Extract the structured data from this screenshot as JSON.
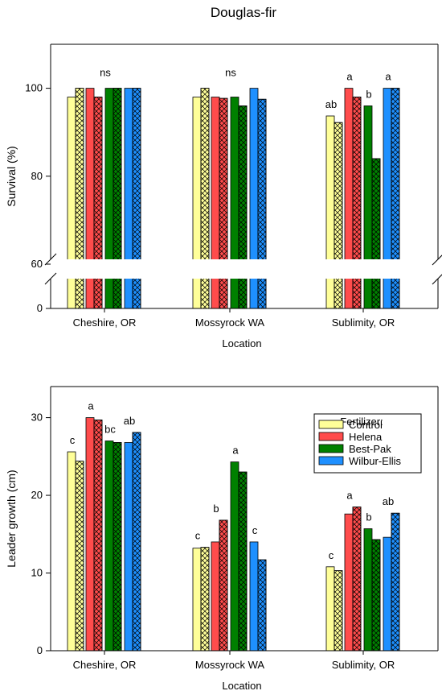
{
  "title": "Douglas-fir",
  "colors": {
    "Control": "#ffff99",
    "Helena": "#ff4c4c",
    "Best-Pak": "#008000",
    "Wilbur-Ellis": "#1e90ff"
  },
  "chart_data": [
    {
      "type": "bar",
      "title": "Douglas-fir",
      "xlabel": "Location",
      "ylabel": "Survival (%)",
      "categories": [
        "Cheshire, OR",
        "Mossyrock WA",
        "Sublimity, OR"
      ],
      "axis_break": [
        0,
        60
      ],
      "ylim": [
        60,
        110
      ],
      "yticks": [
        0,
        60,
        80,
        100
      ],
      "bars_per_treatment": [
        "solid",
        "hatched"
      ],
      "series": [
        {
          "name": "Control",
          "values": [
            [
              98,
              100
            ],
            [
              98,
              100
            ],
            [
              93.7,
              92.2
            ]
          ]
        },
        {
          "name": "Helena",
          "values": [
            [
              100,
              98
            ],
            [
              98,
              97.7
            ],
            [
              100,
              98
            ]
          ]
        },
        {
          "name": "Best-Pak",
          "values": [
            [
              100,
              100
            ],
            [
              98,
              96
            ],
            [
              96,
              84
            ]
          ]
        },
        {
          "name": "Wilbur-Ellis",
          "values": [
            [
              100,
              100
            ],
            [
              100,
              97.5
            ],
            [
              100,
              100
            ]
          ]
        }
      ],
      "annotations": [
        {
          "category": 0,
          "text": "ns"
        },
        {
          "category": 1,
          "text": "ns"
        },
        {
          "category": 2,
          "series": 0,
          "text": "ab"
        },
        {
          "category": 2,
          "series": 1,
          "text": "a"
        },
        {
          "category": 2,
          "series": 2,
          "text": "b"
        },
        {
          "category": 2,
          "series": 3,
          "text": "a"
        }
      ]
    },
    {
      "type": "bar",
      "xlabel": "Location",
      "ylabel": "Leader growth (cm)",
      "categories": [
        "Cheshire, OR",
        "Mossyrock WA",
        "Sublimity, OR"
      ],
      "ylim": [
        0,
        34
      ],
      "yticks": [
        0,
        10,
        20,
        30
      ],
      "bars_per_treatment": [
        "solid",
        "hatched"
      ],
      "legend": {
        "title": "Fertilizer:",
        "placement": "top-right"
      },
      "series": [
        {
          "name": "Control",
          "values": [
            [
              25.6,
              24.4
            ],
            [
              13.2,
              13.3
            ],
            [
              10.8,
              10.3
            ]
          ]
        },
        {
          "name": "Helena",
          "values": [
            [
              30,
              29.7
            ],
            [
              14,
              16.8
            ],
            [
              17.6,
              18.5
            ]
          ]
        },
        {
          "name": "Best-Pak",
          "values": [
            [
              27,
              26.8
            ],
            [
              24.3,
              23
            ],
            [
              15.7,
              14.3
            ]
          ]
        },
        {
          "name": "Wilbur-Ellis",
          "values": [
            [
              26.8,
              28.1
            ],
            [
              14,
              11.7
            ],
            [
              14.6,
              17.7
            ]
          ]
        }
      ],
      "annotations": [
        {
          "category": 0,
          "series": 0,
          "text": "c"
        },
        {
          "category": 0,
          "series": 1,
          "text": "a"
        },
        {
          "category": 0,
          "series": 2,
          "text": "bc"
        },
        {
          "category": 0,
          "series": 3,
          "text": "ab"
        },
        {
          "category": 1,
          "series": 0,
          "text": "c"
        },
        {
          "category": 1,
          "series": 1,
          "text": "b"
        },
        {
          "category": 1,
          "series": 2,
          "text": "a"
        },
        {
          "category": 1,
          "series": 3,
          "text": "c"
        },
        {
          "category": 2,
          "series": 0,
          "text": "c"
        },
        {
          "category": 2,
          "series": 1,
          "text": "a"
        },
        {
          "category": 2,
          "series": 2,
          "text": "b"
        },
        {
          "category": 2,
          "series": 3,
          "text": "ab"
        }
      ]
    }
  ]
}
